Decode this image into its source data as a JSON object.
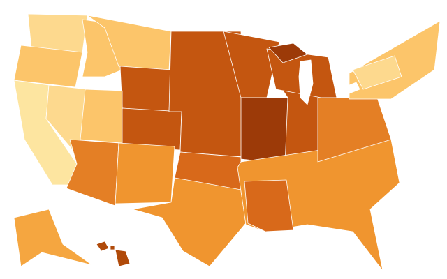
{
  "map": {
    "palette": [
      "#fde5a0",
      "#fdd98e",
      "#fcc56a",
      "#f5a640",
      "#f0952f",
      "#e47f25",
      "#d8691a",
      "#c45610",
      "#9c3a08",
      "#b04a0a"
    ]
  }
}
